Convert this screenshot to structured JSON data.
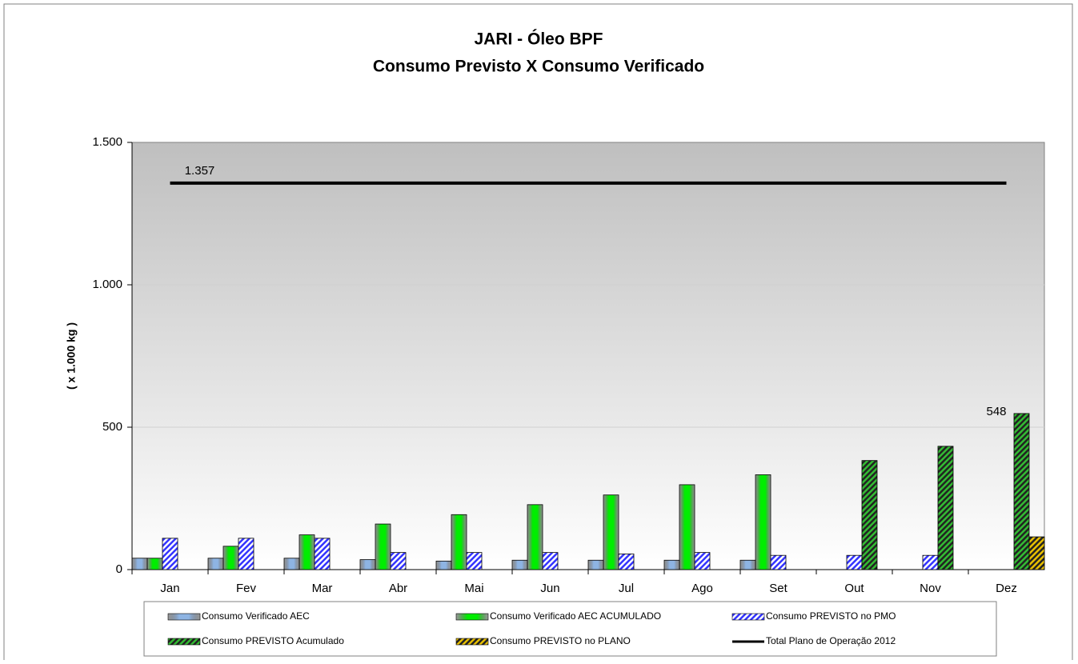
{
  "chart_data": {
    "type": "bar",
    "title": "JARI - Óleo BPF",
    "subtitle": "Consumo Previsto X Consumo Verificado",
    "y_label": "( x 1.000 kg )",
    "categories": [
      "Jan",
      "Fev",
      "Mar",
      "Abr",
      "Mai",
      "Jun",
      "Jul",
      "Ago",
      "Set",
      "Out",
      "Nov",
      "Dez"
    ],
    "series": [
      {
        "name": "Consumo Verificado AEC",
        "color": "#8eb4e3",
        "pattern": "solid",
        "values": [
          40,
          40,
          40,
          35,
          30,
          33,
          33,
          33,
          33,
          null,
          null,
          null
        ]
      },
      {
        "name": "Consumo Verificado AEC ACUMULADO",
        "color": "#00ee00",
        "pattern": "solid",
        "values": [
          40,
          82,
          122,
          160,
          193,
          228,
          262,
          298,
          333,
          null,
          null,
          null
        ]
      },
      {
        "name": "Consumo PREVISTO no PMO",
        "color": "#3333ff",
        "pattern": "hatch",
        "values": [
          110,
          110,
          110,
          60,
          60,
          60,
          55,
          60,
          50,
          50,
          50,
          null
        ]
      },
      {
        "name": "Consumo PREVISTO Acumulado",
        "color": "#33bb33",
        "pattern": "hatch-dark",
        "values": [
          null,
          null,
          null,
          null,
          null,
          null,
          null,
          null,
          null,
          383,
          433,
          548
        ],
        "value_labels": [
          null,
          null,
          null,
          null,
          null,
          null,
          null,
          null,
          null,
          null,
          null,
          "548"
        ]
      },
      {
        "name": "Consumo PREVISTO no PLANO",
        "color": "#e8c000",
        "pattern": "hatch-dark",
        "values": [
          null,
          null,
          null,
          null,
          null,
          null,
          null,
          null,
          null,
          null,
          null,
          115
        ]
      },
      {
        "name": "Total Plano de Operação 2012",
        "color": "#000000",
        "kind": "line",
        "values": [
          1357,
          1357,
          1357,
          1357,
          1357,
          1357,
          1357,
          1357,
          1357,
          1357,
          1357,
          1357
        ],
        "value_labels": [
          "1.357",
          null,
          null,
          null,
          null,
          null,
          null,
          null,
          null,
          null,
          null,
          null
        ]
      }
    ],
    "ylim": [
      0,
      1500
    ],
    "yticks": [
      0,
      500,
      {
        "value": 1000,
        "label": "1.000"
      },
      {
        "value": 1500,
        "label": "1.500"
      }
    ],
    "grid": true,
    "legend": "bottom"
  }
}
